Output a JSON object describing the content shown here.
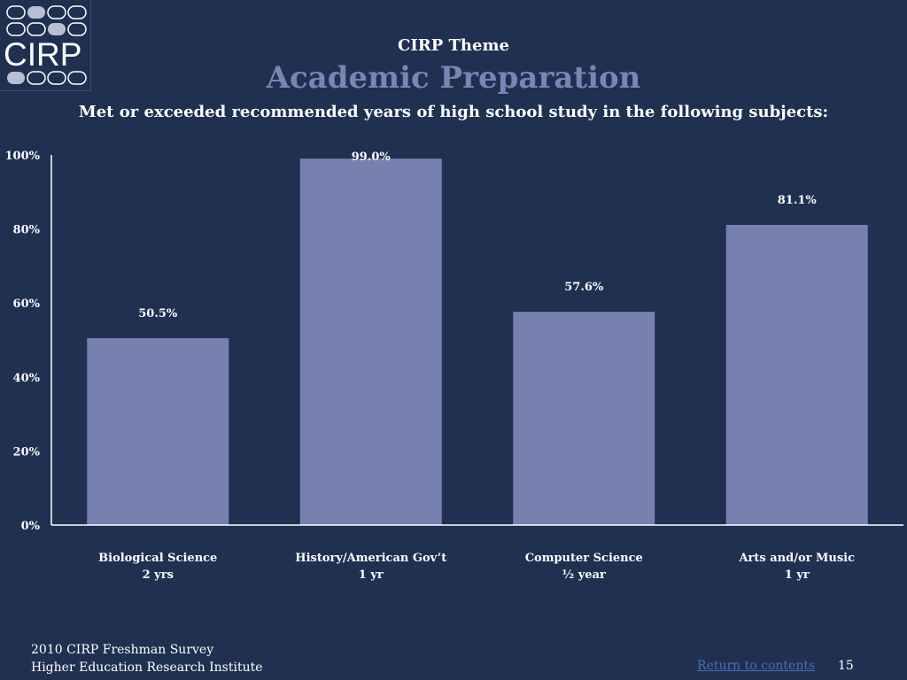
{
  "logo": {
    "text": "CIRP"
  },
  "header": {
    "theme": "CIRP Theme",
    "title": "Academic Preparation",
    "subtitle": "Met or exceeded recommended years of high school study in the following subjects:"
  },
  "chart_data": {
    "type": "bar",
    "categories": [
      "Biological Science",
      "History/American Gov’t",
      "Computer Science",
      "Arts and/or Music"
    ],
    "category_sublabels": [
      "2 yrs",
      "1 yr",
      "½ year",
      "1 yr"
    ],
    "values": [
      50.5,
      99.0,
      57.6,
      81.1
    ],
    "data_labels": [
      "50.5%",
      "99.0%",
      "57.6%",
      "81.1%"
    ],
    "ylim": [
      0,
      100
    ],
    "yticks": [
      "0%",
      "20%",
      "40%",
      "60%",
      "80%",
      "100%"
    ],
    "grid": false,
    "colors": {
      "bar": "#7880b0",
      "axis": "#ffffff",
      "background": "#1f3050"
    }
  },
  "footer": {
    "line1": "2010 CIRP Freshman Survey",
    "line2": "Higher Education Research Institute",
    "link": "Return to contents",
    "page": "15"
  }
}
